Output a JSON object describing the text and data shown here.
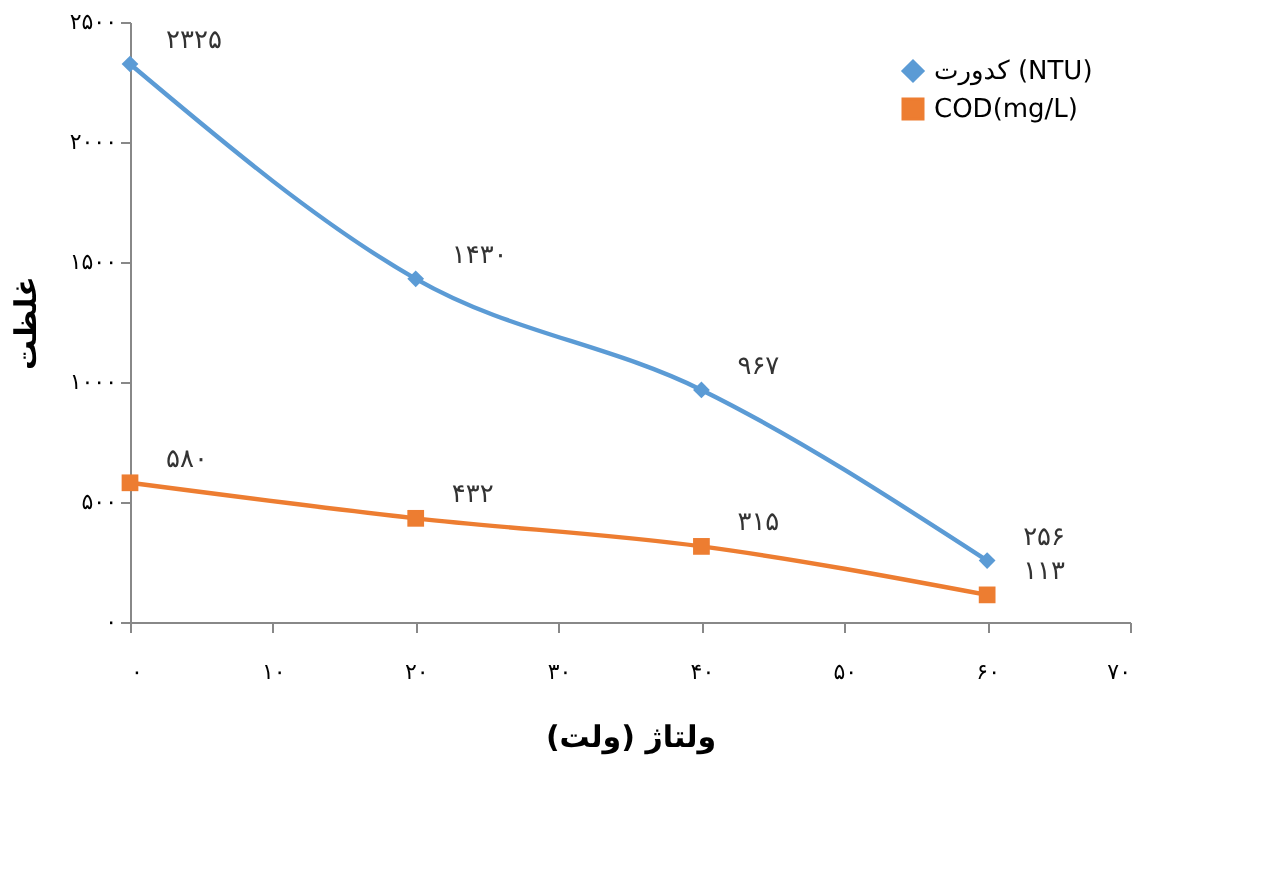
{
  "chart_data": {
    "type": "line",
    "xlabel": "ولتاژ (ولت)",
    "ylabel": "غلظت",
    "x": [
      0,
      20,
      40,
      60
    ],
    "series": [
      {
        "name": "کدورت (NTU)",
        "color": "#5b9bd5",
        "marker": "diamond",
        "values": [
          2325,
          1430,
          967,
          256
        ],
        "value_labels": [
          "۲۳۲۵",
          "۱۴۳۰",
          "۹۶۷",
          "۲۵۶"
        ]
      },
      {
        "name": "COD(mg/L)",
        "color": "#ed7d31",
        "marker": "square",
        "values": [
          580,
          432,
          315,
          113
        ],
        "value_labels": [
          "۵۸۰",
          "۴۳۲",
          "۳۱۵",
          "۱۱۳"
        ]
      }
    ],
    "xlim": [
      0,
      70
    ],
    "xticks": [
      {
        "value": 0,
        "label": "۰"
      },
      {
        "value": 10,
        "label": "۱۰"
      },
      {
        "value": 20,
        "label": "۲۰"
      },
      {
        "value": 30,
        "label": "۳۰"
      },
      {
        "value": 40,
        "label": "۴۰"
      },
      {
        "value": 50,
        "label": "۵۰"
      },
      {
        "value": 60,
        "label": "۶۰"
      },
      {
        "value": 70,
        "label": "۷۰"
      }
    ],
    "ylim": [
      0,
      2500
    ],
    "yticks": [
      {
        "value": 0,
        "label": "۰"
      },
      {
        "value": 500,
        "label": "۵۰۰"
      },
      {
        "value": 1000,
        "label": "۱۰۰۰"
      },
      {
        "value": 1500,
        "label": "۱۵۰۰"
      },
      {
        "value": 2000,
        "label": "۲۰۰۰"
      },
      {
        "value": 2500,
        "label": "۲۵۰۰"
      }
    ],
    "grid": false,
    "legend": "top right",
    "line_style": "solid"
  }
}
